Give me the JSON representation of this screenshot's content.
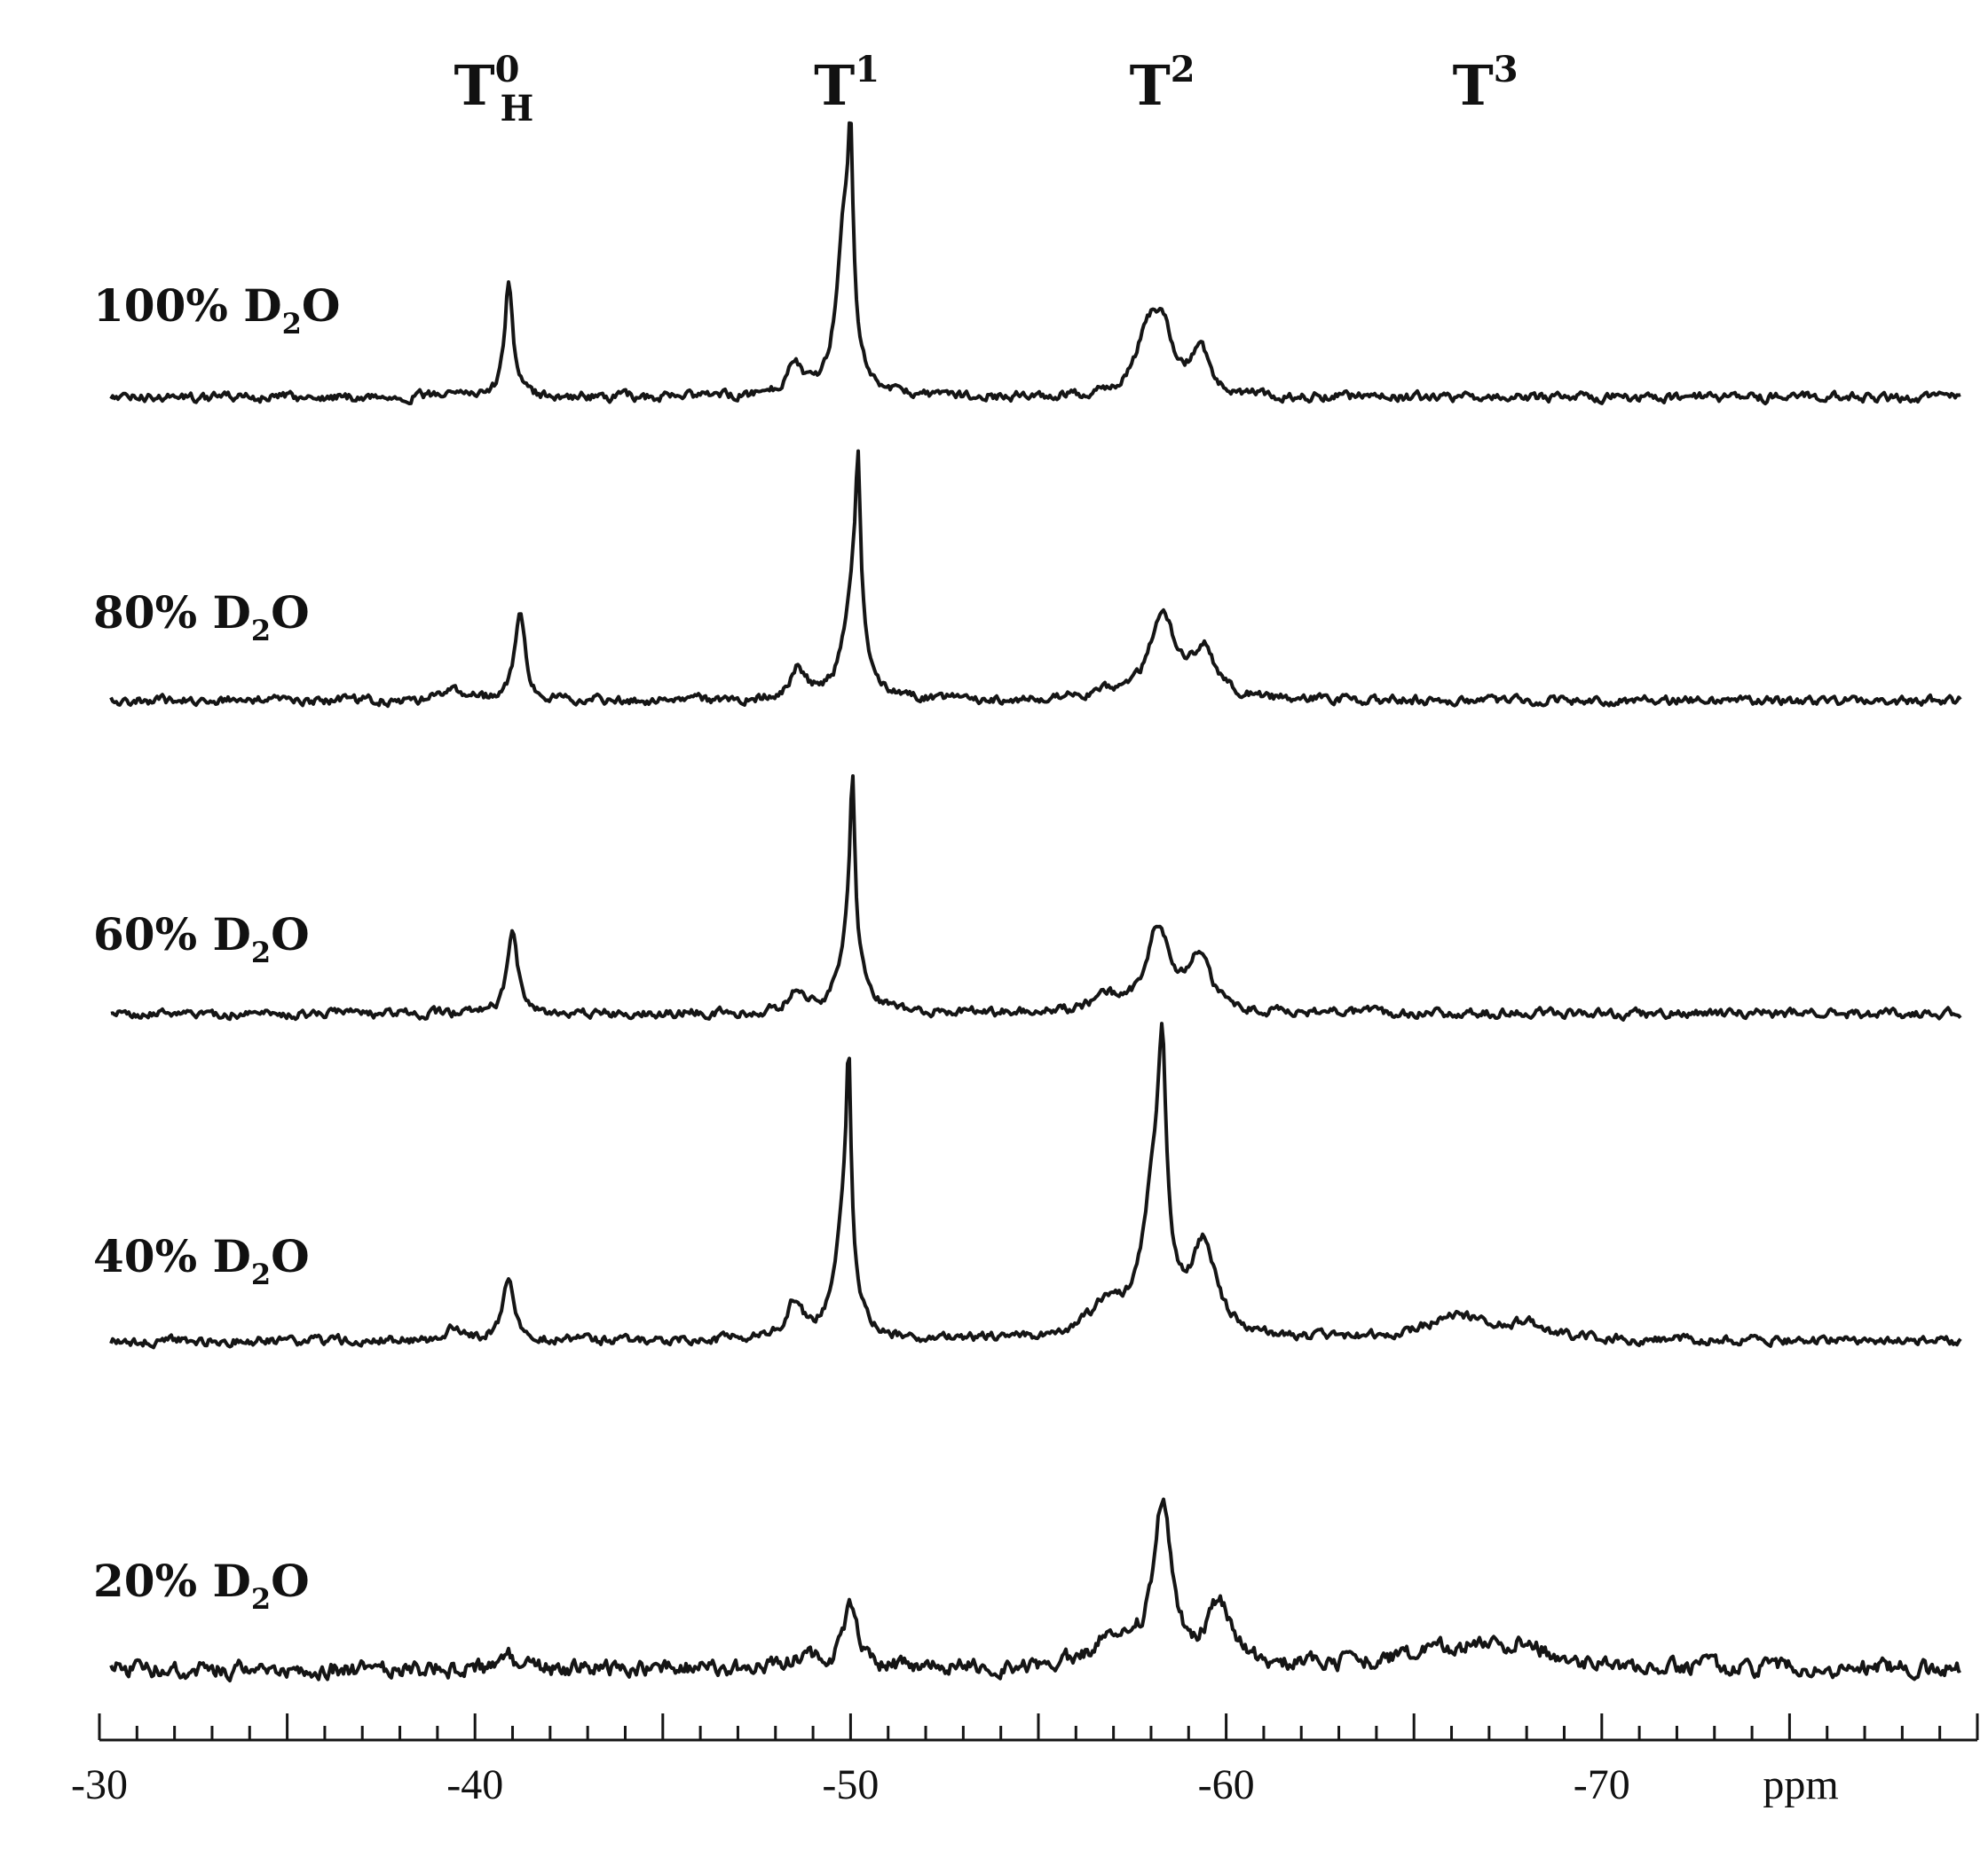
{
  "chart_data": {
    "type": "line",
    "x_axis": {
      "range": [
        -30,
        -80
      ],
      "reversed": true,
      "ticks": [
        -30,
        -40,
        -50,
        -60,
        -70
      ],
      "tick_labels": [
        "-30",
        "-40",
        "-50",
        "-60",
        "-70"
      ],
      "minor_step": 1,
      "unit_label": "ppm"
    },
    "peak_labels": [
      {
        "text": "T",
        "sup": "0",
        "sub": "H",
        "ppm": -40.5
      },
      {
        "text": "T",
        "sup": "1",
        "sub": "",
        "ppm": -49.9
      },
      {
        "text": "T",
        "sup": "2",
        "sub": "",
        "ppm": -58.3
      },
      {
        "text": "T",
        "sup": "3",
        "sub": "",
        "ppm": -66.9
      }
    ],
    "series": [
      {
        "name": "100% D2O",
        "name_main": "100% D",
        "name_sub": "2",
        "name_tail": "O",
        "peaks": [
          {
            "ppm": -39.4,
            "height": 0.03,
            "width": 0.3
          },
          {
            "ppm": -40.9,
            "height": 0.44,
            "width": 0.13
          },
          {
            "ppm": -48.5,
            "height": 0.12,
            "width": 0.25
          },
          {
            "ppm": -49.85,
            "height": 0.68,
            "width": 0.25
          },
          {
            "ppm": -50.0,
            "height": 0.6,
            "width": 0.07
          },
          {
            "ppm": -57.9,
            "height": 0.23,
            "width": 0.35
          },
          {
            "ppm": -58.3,
            "height": 0.22,
            "width": 0.28
          },
          {
            "ppm": -59.3,
            "height": 0.17,
            "width": 0.3
          }
        ]
      },
      {
        "name": "80% D2O",
        "name_main": "80% D",
        "name_sub": "2",
        "name_tail": "O",
        "peaks": [
          {
            "ppm": -39.4,
            "height": 0.05,
            "width": 0.3
          },
          {
            "ppm": -41.2,
            "height": 0.34,
            "width": 0.16
          },
          {
            "ppm": -48.6,
            "height": 0.11,
            "width": 0.25
          },
          {
            "ppm": -50.1,
            "height": 0.48,
            "width": 0.28
          },
          {
            "ppm": -50.2,
            "height": 0.52,
            "width": 0.07
          },
          {
            "ppm": -56.8,
            "height": 0.03,
            "width": 0.4
          },
          {
            "ppm": -58.3,
            "height": 0.32,
            "width": 0.4
          },
          {
            "ppm": -59.4,
            "height": 0.18,
            "width": 0.38
          }
        ]
      },
      {
        "name": "60% D2O",
        "name_main": "60% D",
        "name_sub": "2",
        "name_tail": "O",
        "peaks": [
          {
            "ppm": -41.0,
            "height": 0.3,
            "width": 0.17
          },
          {
            "ppm": -48.6,
            "height": 0.09,
            "width": 0.25
          },
          {
            "ppm": -50.0,
            "height": 0.36,
            "width": 0.28
          },
          {
            "ppm": -50.05,
            "height": 0.58,
            "width": 0.07
          },
          {
            "ppm": -56.8,
            "height": 0.05,
            "width": 0.45
          },
          {
            "ppm": -58.2,
            "height": 0.32,
            "width": 0.38
          },
          {
            "ppm": -59.3,
            "height": 0.2,
            "width": 0.36
          }
        ]
      },
      {
        "name": "40% D2O",
        "name_main": "40% D",
        "name_sub": "2",
        "name_tail": "O",
        "peaks": [
          {
            "ppm": -39.4,
            "height": 0.04,
            "width": 0.3
          },
          {
            "ppm": -40.9,
            "height": 0.24,
            "width": 0.18
          },
          {
            "ppm": -48.5,
            "height": 0.14,
            "width": 0.25
          },
          {
            "ppm": -49.85,
            "height": 0.5,
            "width": 0.28
          },
          {
            "ppm": -49.95,
            "height": 0.66,
            "width": 0.07
          },
          {
            "ppm": -56.8,
            "height": 0.11,
            "width": 0.6
          },
          {
            "ppm": -58.1,
            "height": 0.56,
            "width": 0.38
          },
          {
            "ppm": -58.3,
            "height": 0.7,
            "width": 0.12
          },
          {
            "ppm": -59.4,
            "height": 0.33,
            "width": 0.4
          },
          {
            "ppm": -66.2,
            "height": 0.09,
            "width": 1.1
          },
          {
            "ppm": -68.0,
            "height": 0.05,
            "width": 0.5
          }
        ]
      },
      {
        "name": "20% D2O",
        "name_main": "20% D",
        "name_sub": "2",
        "name_tail": "O",
        "peaks": [
          {
            "ppm": -40.9,
            "height": 0.05,
            "width": 0.2
          },
          {
            "ppm": -48.8,
            "height": 0.05,
            "width": 0.3
          },
          {
            "ppm": -50.0,
            "height": 0.24,
            "width": 0.22
          },
          {
            "ppm": -57.0,
            "height": 0.1,
            "width": 0.7
          },
          {
            "ppm": -58.3,
            "height": 0.6,
            "width": 0.3
          },
          {
            "ppm": -59.8,
            "height": 0.22,
            "width": 0.38
          },
          {
            "ppm": -66.5,
            "height": 0.08,
            "width": 2.0
          },
          {
            "ppm": -68.0,
            "height": 0.05,
            "width": 0.5
          }
        ]
      }
    ]
  }
}
